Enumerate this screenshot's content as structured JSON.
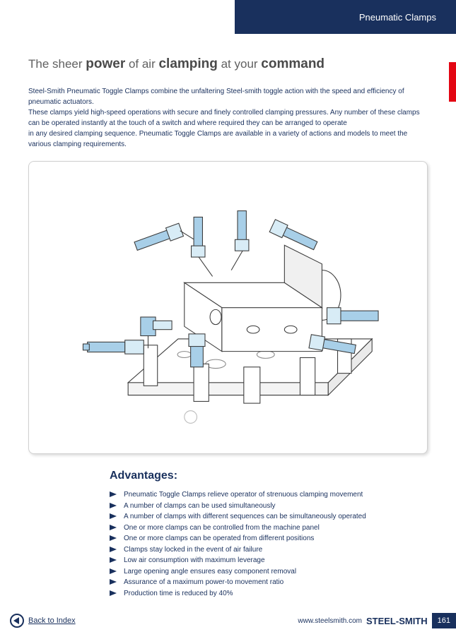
{
  "header": {
    "section_title": "Pneumatic Clamps"
  },
  "headline": {
    "p1": "The sheer ",
    "b1": "power",
    "p2": " of air ",
    "b2": "clamping",
    "p3": " at your ",
    "b3": "command"
  },
  "intro": "Steel-Smith Pneumatic Toggle Clamps combine the unfaltering Steel-smith toggle action with the speed and efficiency of pneumatic actuators.\nThese clamps yield high-speed operations with secure and finely controlled clamping pressures. Any number of these clamps can be operated instantly at the touch of a switch and where required they can be arranged to operate\nin any desired clamping sequence. Pneumatic Toggle Clamps are available in a variety of actions and models to meet the various clamping requirements.",
  "advantages": {
    "title": "Advantages:",
    "items": [
      "Pneumatic Toggle Clamps relieve operator of strenuous clamping movement",
      "A number of clamps can be used simultaneously",
      "A number of clamps with different sequences can be simultaneously operated",
      "One or more clamps can be controlled from the machine panel",
      "One or more clamps can be operated from different positions",
      "Clamps stay locked in the event of air failure",
      "Low air consumption with maximum leverage",
      "Large opening angle ensures easy component removal",
      "Assurance of a maximum power-to movement ratio",
      "Production time is reduced by 40%"
    ]
  },
  "footer": {
    "back_label": "Back to Index",
    "site": "www.steelsmith.com",
    "brand": "STEEL-SMITH",
    "page": "161"
  },
  "diagram": {
    "fill": "#a8cfe8",
    "stroke": "#3a3a3a",
    "light": "#d8ecf6"
  }
}
